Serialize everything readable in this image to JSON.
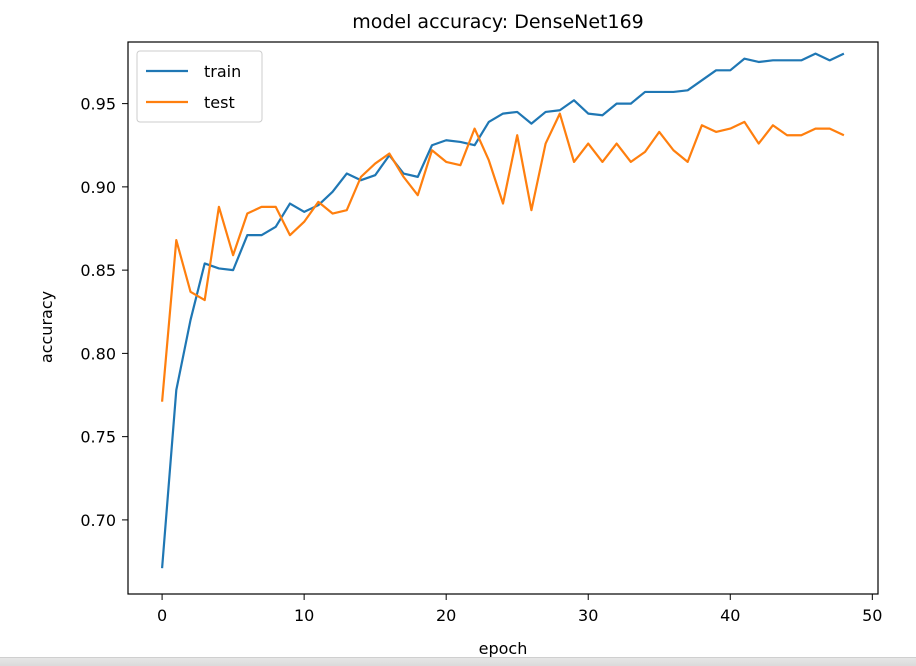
{
  "chart_data": {
    "type": "line",
    "title": "model accuracy: DenseNet169",
    "xlabel": "epoch",
    "ylabel": "accuracy",
    "xlim": [
      -2.4,
      50.4
    ],
    "ylim": [
      0.6555,
      0.987
    ],
    "xticks": [
      0,
      10,
      20,
      30,
      40,
      50
    ],
    "yticks": [
      0.7,
      0.75,
      0.8,
      0.85,
      0.9,
      0.95
    ],
    "xtick_labels": [
      "0",
      "10",
      "20",
      "30",
      "40",
      "50"
    ],
    "ytick_labels": [
      "0.70",
      "0.75",
      "0.80",
      "0.85",
      "0.90",
      "0.95"
    ],
    "grid": false,
    "legend_position": "upper-left",
    "x": [
      0,
      1,
      2,
      3,
      4,
      5,
      6,
      7,
      8,
      9,
      10,
      11,
      12,
      13,
      14,
      15,
      16,
      17,
      18,
      19,
      20,
      21,
      22,
      23,
      24,
      25,
      26,
      27,
      28,
      29,
      30,
      31,
      32,
      33,
      34,
      35,
      36,
      37,
      38,
      39,
      40,
      41,
      42,
      43,
      44,
      45,
      46,
      47,
      48
    ],
    "series": [
      {
        "name": "train",
        "color": "#1f77b4",
        "values": [
          0.671,
          0.778,
          0.82,
          0.854,
          0.851,
          0.85,
          0.871,
          0.871,
          0.876,
          0.89,
          0.885,
          0.889,
          0.897,
          0.908,
          0.904,
          0.907,
          0.919,
          0.908,
          0.906,
          0.925,
          0.928,
          0.927,
          0.925,
          0.939,
          0.944,
          0.945,
          0.938,
          0.945,
          0.946,
          0.952,
          0.944,
          0.943,
          0.95,
          0.95,
          0.957,
          0.957,
          0.957,
          0.958,
          0.964,
          0.97,
          0.97,
          0.977,
          0.975,
          0.976,
          0.976,
          0.976,
          0.98,
          0.976,
          0.98
        ]
      },
      {
        "name": "test",
        "color": "#ff7f0e",
        "values": [
          0.771,
          0.868,
          0.837,
          0.832,
          0.888,
          0.859,
          0.884,
          0.888,
          0.888,
          0.871,
          0.879,
          0.891,
          0.884,
          0.886,
          0.906,
          0.914,
          0.92,
          0.906,
          0.895,
          0.922,
          0.915,
          0.913,
          0.935,
          0.916,
          0.89,
          0.931,
          0.886,
          0.926,
          0.944,
          0.915,
          0.926,
          0.915,
          0.926,
          0.915,
          0.921,
          0.933,
          0.922,
          0.915,
          0.937,
          0.933,
          0.935,
          0.939,
          0.926,
          0.937,
          0.931,
          0.931,
          0.935,
          0.935,
          0.931
        ]
      }
    ]
  }
}
